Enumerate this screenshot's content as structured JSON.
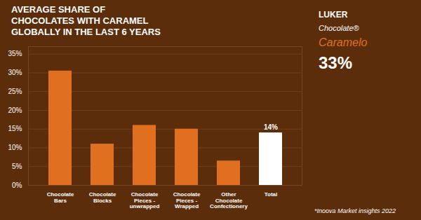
{
  "chart_data": {
    "type": "bar",
    "title": "AVERAGE SHARE OF\nCHOCOLATES WITH CARAMEL\nGLOBALLY IN THE LAST 6 YEARS",
    "categories": [
      "Chocolate\nBars",
      "Chocolate\nBlocks",
      "Chocolate\nPieces -\nunwrapped",
      "Chocolate\nPieces -\nWrapped",
      "Other\nChocolate\nConfectionery",
      "Total"
    ],
    "values": [
      30.5,
      11.0,
      16.0,
      15.0,
      6.5,
      14.0
    ],
    "colors": [
      "#E07020",
      "#E07020",
      "#E07020",
      "#E07020",
      "#E07020",
      "#FFFFFF"
    ],
    "ylim": [
      0,
      37
    ],
    "yticks": [
      {
        "value": 0,
        "label": "0%"
      },
      {
        "value": 5,
        "label": "5%"
      },
      {
        "value": 10,
        "label": "10%"
      },
      {
        "value": 15,
        "label": "15%"
      },
      {
        "value": 20,
        "label": "20%"
      },
      {
        "value": 25,
        "label": "25%"
      },
      {
        "value": 30,
        "label": "30%"
      },
      {
        "value": 35,
        "label": "35%"
      }
    ],
    "grid": true,
    "annotations": [
      {
        "text": "14%",
        "category": "Total",
        "value": 14.0
      },
      {
        "text": "LUKER"
      },
      {
        "text": "Chocolate®"
      },
      {
        "text": "Caramelo",
        "color": "#E07020"
      },
      {
        "text": "33%"
      },
      {
        "text": "*Inoova Market insights 2022"
      }
    ]
  }
}
